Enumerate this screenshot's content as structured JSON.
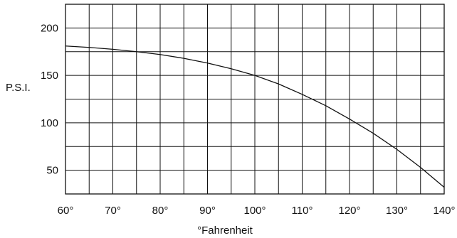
{
  "chart_data": {
    "type": "line",
    "title": "",
    "xlabel": "°Fahrenheit",
    "ylabel": "P.S.I.",
    "xlim": [
      60,
      140
    ],
    "ylim": [
      25,
      225
    ],
    "x_ticks": [
      60,
      70,
      80,
      90,
      100,
      110,
      120,
      130,
      140
    ],
    "x_tick_labels": [
      "60°",
      "70°",
      "80°",
      "90°",
      "100°",
      "110°",
      "120°",
      "130°",
      "140°"
    ],
    "y_ticks": [
      50,
      100,
      150,
      200
    ],
    "y_tick_labels": [
      "50",
      "100",
      "150",
      "200"
    ],
    "grid": true,
    "legend": "none",
    "series": [
      {
        "x": [
          60,
          65,
          70,
          75,
          80,
          85,
          90,
          95,
          100,
          105,
          110,
          115,
          120,
          125,
          130,
          135,
          140
        ],
        "y": [
          181,
          179.5,
          177.5,
          175,
          172,
          168,
          163,
          157,
          150,
          141,
          130,
          118,
          104,
          89,
          72,
          53,
          32
        ]
      }
    ]
  }
}
